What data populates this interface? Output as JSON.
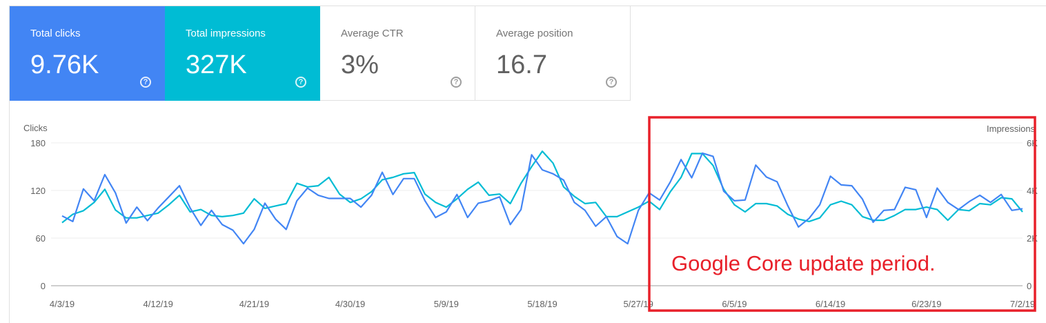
{
  "cards": [
    {
      "key": "clicks",
      "label": "Total clicks",
      "value": "9.76K",
      "help": "?"
    },
    {
      "key": "impr",
      "label": "Total impressions",
      "value": "327K",
      "help": "?"
    },
    {
      "key": "ctr",
      "label": "Average CTR",
      "value": "3%",
      "help": "?"
    },
    {
      "key": "pos",
      "label": "Average position",
      "value": "16.7",
      "help": "?"
    }
  ],
  "colors": {
    "clicks": "#4285f4",
    "impressions": "#00bcd4",
    "annotation": "#e8202a",
    "grid": "#eeeeee"
  },
  "annotation": {
    "text": "Google Core update period."
  },
  "chart_data": {
    "type": "line",
    "ylabel": "Clicks",
    "y2label": "Impressions",
    "ylim": [
      0,
      180
    ],
    "y2lim": [
      0,
      6000
    ],
    "yticks": [
      "180",
      "120",
      "60",
      "0"
    ],
    "y2ticks": [
      "6K",
      "4K",
      "2K",
      "0"
    ],
    "xticks": [
      "4/3/19",
      "4/12/19",
      "4/21/19",
      "4/30/19",
      "5/9/19",
      "5/18/19",
      "5/27/19",
      "6/5/19",
      "6/14/19",
      "6/23/19",
      "7/2/19"
    ],
    "x_start": "4/3/19",
    "grid": true,
    "series": [
      {
        "axis": "left",
        "values": [
          88,
          81,
          122,
          107,
          140,
          117,
          79,
          99,
          82,
          98,
          112,
          126,
          98,
          76,
          95,
          77,
          70,
          53,
          71,
          104,
          84,
          71,
          107,
          123,
          114,
          110,
          110,
          110,
          99,
          114,
          143,
          115,
          135,
          135,
          107,
          86,
          93,
          115,
          86,
          104,
          107,
          112,
          77,
          96,
          165,
          146,
          141,
          133,
          105,
          95,
          75,
          87,
          62,
          53,
          95,
          117,
          108,
          131,
          159,
          136,
          167,
          163,
          119,
          107,
          108,
          152,
          137,
          131,
          101,
          74,
          85,
          102,
          138,
          127,
          126,
          109,
          80,
          95,
          96,
          124,
          121,
          86,
          123,
          105,
          96,
          106,
          114,
          105,
          115,
          95,
          97
        ]
      },
      {
        "axis": "right",
        "values": [
          2650,
          3000,
          3150,
          3500,
          4050,
          3180,
          2850,
          2850,
          2950,
          3050,
          3400,
          3800,
          3100,
          3200,
          2950,
          2900,
          2950,
          3050,
          3650,
          3250,
          3350,
          3450,
          4300,
          4150,
          4200,
          4550,
          3850,
          3500,
          3650,
          3950,
          4450,
          4550,
          4700,
          4750,
          3850,
          3500,
          3300,
          3650,
          4050,
          4350,
          3800,
          3850,
          3450,
          4300,
          5000,
          5650,
          5150,
          4150,
          3750,
          3450,
          3500,
          2900,
          2900,
          3100,
          3300,
          3550,
          3200,
          3950,
          4550,
          5550,
          5550,
          5050,
          4050,
          3400,
          3100,
          3450,
          3450,
          3350,
          3000,
          2800,
          2700,
          2850,
          3400,
          3550,
          3400,
          2900,
          2750,
          2750,
          2950,
          3200,
          3200,
          3300,
          3200,
          2750,
          3200,
          3150,
          3450,
          3400,
          3700,
          3650,
          3100
        ]
      }
    ]
  }
}
